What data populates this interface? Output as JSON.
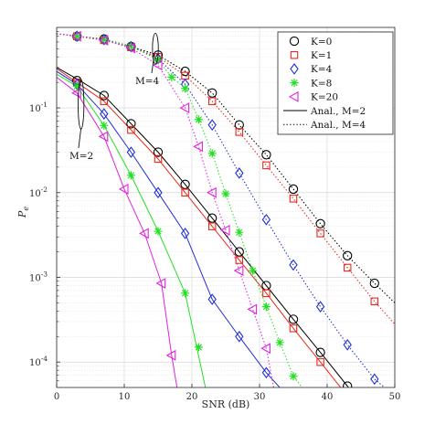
{
  "chart_data": {
    "type": "line",
    "title": "",
    "xlabel": "SNR (dB)",
    "ylabel": "P_e",
    "xlim": [
      0,
      50
    ],
    "ylim_log10": [
      -4.3,
      -0.05
    ],
    "yscale": "log",
    "grid": true,
    "legend_position": "top-right",
    "x_ticks": [
      "0",
      "10",
      "20",
      "30",
      "40",
      "50"
    ],
    "y_ticks": [
      {
        "base": "10",
        "exp": "-1",
        "value": 0.1
      },
      {
        "base": "10",
        "exp": "-2",
        "value": 0.01
      },
      {
        "base": "10",
        "exp": "-3",
        "value": 0.001
      },
      {
        "base": "10",
        "exp": "-4",
        "value": 0.0001
      }
    ],
    "annotations": [
      {
        "label": "M=2",
        "x": 3.6,
        "y": 0.11
      },
      {
        "label": "M=4",
        "x": 14.6,
        "y": 0.5
      }
    ],
    "colors": {
      "K0": "#000000",
      "K1": "#e8291c",
      "K4": "#1f2fd6",
      "K8": "#22e022",
      "K20": "#e022e0"
    },
    "marker_series": [
      {
        "name": "K=0",
        "color": "#000000",
        "marker": "circle",
        "M": 2,
        "x": [
          3,
          7,
          11,
          15,
          19,
          23,
          27,
          31,
          35,
          39,
          43
        ],
        "y": [
          0.21,
          0.14,
          0.065,
          0.03,
          0.0125,
          0.005,
          0.002,
          0.0008,
          0.00032,
          0.00013,
          5.2e-05
        ]
      },
      {
        "name": "K=1",
        "color": "#e8291c",
        "marker": "square",
        "M": 2,
        "x": [
          3,
          7,
          11,
          15,
          19,
          23,
          27,
          31,
          35,
          39
        ],
        "y": [
          0.2,
          0.12,
          0.055,
          0.025,
          0.01,
          0.004,
          0.0016,
          0.00065,
          0.00025,
          0.0001
        ]
      },
      {
        "name": "K=4",
        "color": "#1f2fd6",
        "marker": "diamond",
        "M": 2,
        "x": [
          3,
          7,
          11,
          15,
          19,
          23,
          27,
          31
        ],
        "y": [
          0.19,
          0.085,
          0.03,
          0.01,
          0.0033,
          0.00055,
          0.0002,
          7.5e-05
        ]
      },
      {
        "name": "K=8",
        "color": "#22e022",
        "marker": "asterisk",
        "M": 2,
        "x": [
          3,
          7,
          11,
          15,
          19,
          21
        ],
        "y": [
          0.18,
          0.062,
          0.016,
          0.0035,
          0.00065,
          0.00015
        ]
      },
      {
        "name": "K=20",
        "color": "#e022e0",
        "marker": "triangle-left",
        "M": 2,
        "x": [
          3,
          7,
          10,
          13,
          15.5,
          17
        ],
        "y": [
          0.15,
          0.046,
          0.011,
          0.0033,
          0.00085,
          0.00012
        ]
      },
      {
        "name": "K=0",
        "color": "#000000",
        "marker": "circle",
        "M": 4,
        "x": [
          3,
          7,
          11,
          15,
          19,
          23,
          27,
          31,
          35,
          39,
          43,
          47
        ],
        "y": [
          0.7,
          0.65,
          0.53,
          0.42,
          0.27,
          0.15,
          0.063,
          0.028,
          0.011,
          0.0043,
          0.0018,
          0.00085
        ]
      },
      {
        "name": "K=1",
        "color": "#e8291c",
        "marker": "square",
        "M": 4,
        "x": [
          3,
          7,
          11,
          15,
          19,
          23,
          27,
          31,
          35,
          39,
          43,
          47
        ],
        "y": [
          0.7,
          0.63,
          0.52,
          0.4,
          0.24,
          0.12,
          0.052,
          0.021,
          0.0085,
          0.0033,
          0.0013,
          0.00052
        ]
      },
      {
        "name": "K=4",
        "color": "#1f2fd6",
        "marker": "diamond",
        "M": 4,
        "x": [
          3,
          7,
          11,
          15,
          19,
          23,
          27,
          31,
          35,
          39,
          43,
          47
        ],
        "y": [
          0.7,
          0.64,
          0.53,
          0.38,
          0.19,
          0.063,
          0.017,
          0.0048,
          0.0014,
          0.00045,
          0.00016,
          6.3e-05
        ]
      },
      {
        "name": "K=8",
        "color": "#22e022",
        "marker": "asterisk",
        "M": 4,
        "x": [
          3,
          7,
          11,
          15,
          17,
          19,
          21,
          23,
          25,
          27,
          29,
          31,
          33,
          35
        ],
        "y": [
          0.7,
          0.64,
          0.53,
          0.37,
          0.23,
          0.17,
          0.073,
          0.029,
          0.0097,
          0.0034,
          0.0012,
          0.00045,
          0.00017,
          6.8e-05
        ]
      },
      {
        "name": "K=20",
        "color": "#e022e0",
        "marker": "triangle-left",
        "M": 4,
        "x": [
          3,
          7,
          11,
          15,
          19,
          21,
          23,
          25,
          27,
          29,
          31
        ],
        "y": [
          0.7,
          0.63,
          0.51,
          0.32,
          0.1,
          0.035,
          0.01,
          0.0036,
          0.0012,
          0.00042,
          0.000145
        ]
      }
    ],
    "analytic_lines": [
      {
        "name": "Anal., M=2",
        "style": "solid",
        "color": "#000000",
        "x": [
          0,
          3,
          7,
          11,
          15,
          19,
          23,
          27,
          31,
          35,
          39,
          43,
          44
        ],
        "y": [
          0.3,
          0.22,
          0.14,
          0.065,
          0.03,
          0.0125,
          0.005,
          0.002,
          0.0008,
          0.00032,
          0.00013,
          5.2e-05,
          4e-05
        ]
      },
      {
        "name": "",
        "style": "solid",
        "color": "#e8291c",
        "x": [
          0,
          3,
          7,
          11,
          15,
          19,
          23,
          27,
          31,
          35,
          39,
          42
        ],
        "y": [
          0.29,
          0.2,
          0.12,
          0.055,
          0.025,
          0.01,
          0.004,
          0.0016,
          0.00065,
          0.00025,
          0.0001,
          5e-05
        ]
      },
      {
        "name": "",
        "style": "solid",
        "color": "#1f2fd6",
        "x": [
          0,
          3,
          7,
          11,
          15,
          19,
          23,
          27,
          31,
          33
        ],
        "y": [
          0.27,
          0.19,
          0.085,
          0.03,
          0.01,
          0.0033,
          0.00055,
          0.0002,
          7.5e-05,
          5e-05
        ]
      },
      {
        "name": "",
        "style": "solid",
        "color": "#22e022",
        "x": [
          0,
          3,
          7,
          11,
          15,
          19,
          22
        ],
        "y": [
          0.25,
          0.18,
          0.062,
          0.016,
          0.0035,
          0.00065,
          5e-05
        ]
      },
      {
        "name": "",
        "style": "solid",
        "color": "#e022e0",
        "x": [
          0,
          3,
          7,
          10,
          13,
          15.5,
          17,
          17.8
        ],
        "y": [
          0.23,
          0.15,
          0.046,
          0.011,
          0.0033,
          0.00085,
          0.00012,
          5e-05
        ]
      },
      {
        "name": "Anal., M=4",
        "style": "dotted",
        "color": "#000000",
        "x": [
          0,
          3,
          7,
          11,
          15,
          19,
          23,
          27,
          31,
          35,
          39,
          43,
          47,
          50
        ],
        "y": [
          0.75,
          0.7,
          0.65,
          0.53,
          0.42,
          0.27,
          0.15,
          0.063,
          0.028,
          0.011,
          0.0043,
          0.0018,
          0.00085,
          0.0005
        ]
      },
      {
        "name": "",
        "style": "dotted",
        "color": "#e8291c",
        "x": [
          0,
          3,
          7,
          11,
          15,
          19,
          23,
          27,
          31,
          35,
          39,
          43,
          47,
          50
        ],
        "y": [
          0.75,
          0.7,
          0.63,
          0.52,
          0.4,
          0.24,
          0.12,
          0.052,
          0.021,
          0.0085,
          0.0033,
          0.0013,
          0.00052,
          0.00028
        ]
      },
      {
        "name": "",
        "style": "dotted",
        "color": "#1f2fd6",
        "x": [
          0,
          3,
          7,
          11,
          15,
          19,
          23,
          27,
          31,
          35,
          39,
          43,
          47,
          48.5
        ],
        "y": [
          0.75,
          0.7,
          0.64,
          0.53,
          0.38,
          0.19,
          0.063,
          0.017,
          0.0048,
          0.0014,
          0.00045,
          0.00016,
          6.3e-05,
          5e-05
        ]
      },
      {
        "name": "",
        "style": "dotted",
        "color": "#22e022",
        "x": [
          0,
          3,
          7,
          11,
          15,
          17,
          19,
          21,
          23,
          25,
          27,
          29,
          31,
          33,
          35,
          36.3
        ],
        "y": [
          0.75,
          0.7,
          0.64,
          0.53,
          0.37,
          0.23,
          0.17,
          0.073,
          0.029,
          0.0097,
          0.0034,
          0.0012,
          0.00045,
          0.00017,
          6.8e-05,
          5e-05
        ]
      },
      {
        "name": "",
        "style": "dotted",
        "color": "#e022e0",
        "x": [
          0,
          3,
          7,
          11,
          15,
          19,
          21,
          23,
          25,
          27,
          29,
          31,
          32.1
        ],
        "y": [
          0.75,
          0.7,
          0.63,
          0.51,
          0.32,
          0.1,
          0.035,
          0.01,
          0.0036,
          0.0012,
          0.00042,
          0.000145,
          5e-05
        ]
      }
    ],
    "legend": [
      {
        "label": "K=0",
        "kind": "marker",
        "marker": "circle",
        "color": "#000000"
      },
      {
        "label": "K=1",
        "kind": "marker",
        "marker": "square",
        "color": "#e8291c"
      },
      {
        "label": "K=4",
        "kind": "marker",
        "marker": "diamond",
        "color": "#1f2fd6"
      },
      {
        "label": "K=8",
        "kind": "marker",
        "marker": "asterisk",
        "color": "#22e022"
      },
      {
        "label": "K=20",
        "kind": "marker",
        "marker": "triangle-left",
        "color": "#e022e0"
      },
      {
        "label": "Anal., M=2",
        "kind": "line",
        "style": "solid",
        "color": "#000000"
      },
      {
        "label": "Anal., M=4",
        "kind": "line",
        "style": "dotted",
        "color": "#000000"
      }
    ]
  }
}
